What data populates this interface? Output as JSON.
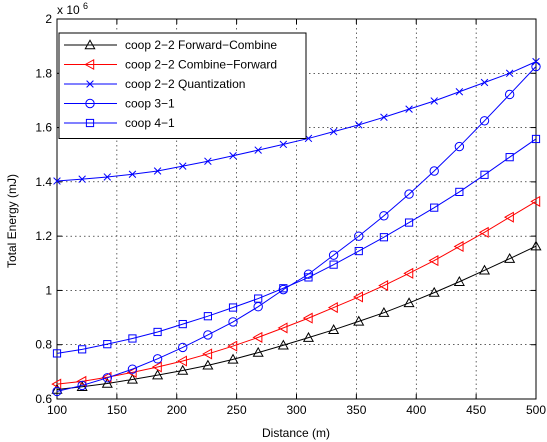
{
  "chart_data": {
    "type": "line",
    "xlabel": "Distance (m)",
    "ylabel": "Total Energy (mJ)",
    "y_multiplier": "x 10",
    "y_multiplier_exponent": "6",
    "xlim": [
      100,
      500
    ],
    "ylim": [
      0.6,
      2.0
    ],
    "xticks": [
      100,
      150,
      200,
      250,
      300,
      350,
      400,
      450,
      500
    ],
    "yticks": [
      0.6,
      0.8,
      1.0,
      1.2,
      1.4,
      1.6,
      1.8,
      2.0
    ],
    "xtick_labels": [
      "100",
      "150",
      "200",
      "250",
      "300",
      "350",
      "400",
      "450",
      "500"
    ],
    "ytick_labels": [
      "0.6",
      "0.8",
      "1",
      "1.2",
      "1.4",
      "1.6",
      "1.8",
      "2"
    ],
    "grid": true,
    "legend_position": "top-left",
    "x": [
      100,
      121,
      142,
      163,
      184,
      205,
      226,
      247,
      268,
      289,
      310,
      331,
      352,
      373,
      394,
      415,
      436,
      457,
      478,
      500
    ],
    "series": [
      {
        "name": "coop 2−2 Forward−Combine",
        "marker": "triangle-up",
        "color": "#000000",
        "values": [
          0.635,
          0.645,
          0.657,
          0.672,
          0.688,
          0.705,
          0.724,
          0.746,
          0.771,
          0.798,
          0.826,
          0.855,
          0.886,
          0.918,
          0.954,
          0.992,
          1.032,
          1.074,
          1.117,
          1.163
        ]
      },
      {
        "name": "coop 2−2 Combine−Forward",
        "marker": "triangle-left",
        "color": "#ff0000",
        "values": [
          0.655,
          0.665,
          0.68,
          0.698,
          0.718,
          0.74,
          0.766,
          0.795,
          0.827,
          0.862,
          0.898,
          0.937,
          0.976,
          1.018,
          1.063,
          1.11,
          1.162,
          1.214,
          1.27,
          1.328
        ]
      },
      {
        "name": "coop 2−2 Quantization",
        "marker": "x",
        "color": "#0000ff",
        "values": [
          1.403,
          1.41,
          1.418,
          1.428,
          1.44,
          1.458,
          1.476,
          1.496,
          1.517,
          1.538,
          1.56,
          1.585,
          1.61,
          1.638,
          1.668,
          1.698,
          1.732,
          1.766,
          1.8,
          1.843
        ]
      },
      {
        "name": "coop 3−1",
        "marker": "circle",
        "color": "#0000ff",
        "values": [
          0.628,
          0.65,
          0.678,
          0.71,
          0.748,
          0.79,
          0.836,
          0.884,
          0.94,
          1.003,
          1.06,
          1.13,
          1.2,
          1.275,
          1.355,
          1.44,
          1.53,
          1.625,
          1.722,
          1.825
        ]
      },
      {
        "name": "coop 4−1",
        "marker": "square",
        "color": "#0000ff",
        "values": [
          0.768,
          0.783,
          0.802,
          0.823,
          0.847,
          0.876,
          0.905,
          0.937,
          0.97,
          1.008,
          1.048,
          1.095,
          1.145,
          1.196,
          1.25,
          1.305,
          1.363,
          1.426,
          1.491,
          1.558
        ]
      }
    ]
  }
}
